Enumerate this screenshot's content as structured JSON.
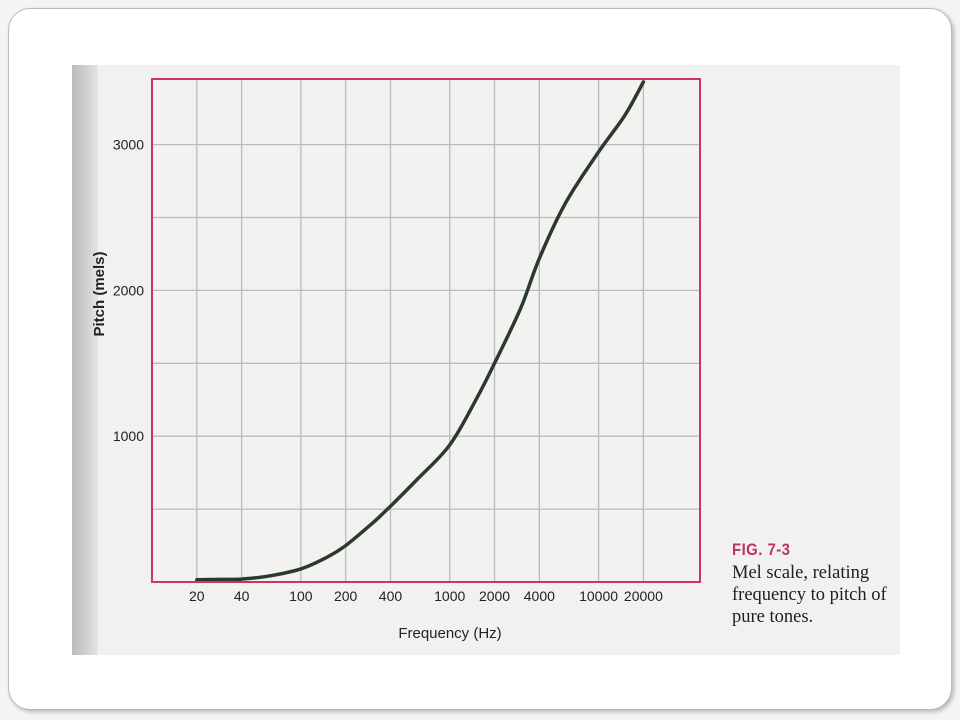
{
  "chart_data": {
    "type": "line",
    "title": "",
    "xlabel": "Frequency (Hz)",
    "ylabel": "Pitch (mels)",
    "x_scale": "log",
    "x_tick_labels": [
      "20",
      "40",
      "100",
      "200",
      "400",
      "1000",
      "2000",
      "4000",
      "10000",
      "20000"
    ],
    "x_tick_values": [
      20,
      40,
      100,
      200,
      400,
      1000,
      2000,
      4000,
      10000,
      20000
    ],
    "y_tick_labels": [
      "1000",
      "2000",
      "3000"
    ],
    "y_tick_values": [
      1000,
      2000,
      3000
    ],
    "xlim": [
      10,
      48000
    ],
    "ylim": [
      0,
      3450
    ],
    "grid": true,
    "series": [
      {
        "x": [
          20,
          30,
          40,
          60,
          100,
          150,
          200,
          300,
          400,
          600,
          1000,
          1500,
          2000,
          3000,
          4000,
          6000,
          10000,
          15000,
          20000
        ],
        "values": [
          15,
          18,
          20,
          40,
          90,
          170,
          250,
          400,
          520,
          700,
          940,
          1250,
          1500,
          1880,
          2220,
          2600,
          2950,
          3200,
          3430
        ]
      }
    ],
    "colors": {
      "line": "#2c3a2e",
      "frame": "#cc3366",
      "grid": "#b8bcc0"
    }
  },
  "caption": {
    "figure_label": "FIG. 7-3",
    "lines": [
      "Mel scale, relating",
      "frequency to pitch of",
      "pure tones."
    ]
  }
}
